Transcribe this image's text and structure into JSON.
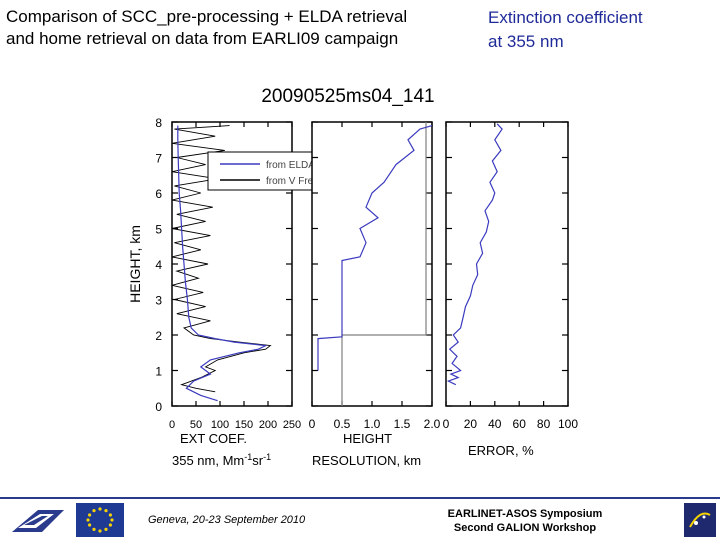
{
  "slide": {
    "title_left_line1": "Comparison of SCC_pre-processing + ELDA retrieval",
    "title_left_line2": "and home retrieval on data from EARLI09 campaign",
    "title_right_line1": "Extinction coefficient",
    "title_right_line2": "at 355 nm",
    "footer_city_date": "Geneva, 20-23 September 2010",
    "footer_event_line1": "EARLINET-ASOS Symposium",
    "footer_event_line2": "Second GALION Workshop"
  },
  "colors": {
    "elda": "#3b3bbf",
    "home": "#000000",
    "title_right": "#1f2a99",
    "footer_bar": "#2a3a8c"
  },
  "chart_data": [
    {
      "type": "line",
      "title": "20090525ms04_141",
      "xlabel_line1": "EXT COEF.",
      "xlabel_line2": "355 nm, Mm",
      "xlabel_sup": "-1",
      "xlabel_mid": "sr",
      "xlabel_sup2": "-1",
      "ylabel": "HEIGHT, km",
      "xlim": [
        0,
        250
      ],
      "ylim": [
        0,
        8
      ],
      "x_ticks": [
        0,
        50,
        100,
        150,
        200,
        250
      ],
      "y_ticks": [
        0,
        1,
        2,
        3,
        4,
        5,
        6,
        7,
        8
      ],
      "legend_position": "top-right",
      "series": [
        {
          "name": "from ELDA",
          "color": "#3b3bbf",
          "points": [
            [
              95,
              0.15
            ],
            [
              60,
              0.3
            ],
            [
              30,
              0.5
            ],
            [
              45,
              0.7
            ],
            [
              80,
              0.9
            ],
            [
              60,
              1.1
            ],
            [
              80,
              1.3
            ],
            [
              140,
              1.5
            ],
            [
              180,
              1.6
            ],
            [
              195,
              1.7
            ],
            [
              130,
              1.8
            ],
            [
              90,
              1.9
            ],
            [
              55,
              2.0
            ],
            [
              40,
              2.2
            ],
            [
              35,
              2.5
            ],
            [
              32,
              3.0
            ],
            [
              28,
              3.5
            ],
            [
              25,
              4.0
            ],
            [
              22,
              4.5
            ],
            [
              20,
              5.0
            ],
            [
              18,
              5.5
            ],
            [
              15,
              6.0
            ],
            [
              14,
              6.5
            ],
            [
              13,
              7.0
            ],
            [
              12,
              7.5
            ],
            [
              12,
              7.9
            ]
          ]
        },
        {
          "name": "from V Freudenthaler",
          "color": "#000000",
          "points": [
            [
              90,
              0.4
            ],
            [
              50,
              0.5
            ],
            [
              20,
              0.6
            ],
            [
              60,
              0.8
            ],
            [
              90,
              1.0
            ],
            [
              70,
              1.1
            ],
            [
              95,
              1.3
            ],
            [
              150,
              1.5
            ],
            [
              195,
              1.6
            ],
            [
              205,
              1.7
            ],
            [
              140,
              1.8
            ],
            [
              80,
              1.9
            ],
            [
              45,
              2.0
            ],
            [
              25,
              2.2
            ],
            [
              80,
              2.4
            ],
            [
              10,
              2.6
            ],
            [
              70,
              2.8
            ],
            [
              5,
              3.0
            ],
            [
              65,
              3.2
            ],
            [
              0,
              3.4
            ],
            [
              55,
              3.6
            ],
            [
              10,
              3.8
            ],
            [
              75,
              4.0
            ],
            [
              0,
              4.2
            ],
            [
              60,
              4.4
            ],
            [
              5,
              4.6
            ],
            [
              80,
              4.8
            ],
            [
              0,
              5.0
            ],
            [
              70,
              5.2
            ],
            [
              10,
              5.4
            ],
            [
              85,
              5.6
            ],
            [
              0,
              5.8
            ],
            [
              60,
              6.0
            ],
            [
              5,
              6.2
            ],
            [
              95,
              6.4
            ],
            [
              0,
              6.6
            ],
            [
              70,
              6.8
            ],
            [
              10,
              7.0
            ],
            [
              110,
              7.2
            ],
            [
              0,
              7.4
            ],
            [
              90,
              7.6
            ],
            [
              5,
              7.8
            ],
            [
              120,
              7.9
            ]
          ]
        }
      ]
    },
    {
      "type": "line",
      "xlabel_line1": "HEIGHT",
      "xlabel_line2": "RESOLUTION, km",
      "xlim": [
        0,
        2.0
      ],
      "ylim": [
        0,
        8
      ],
      "x_ticks": [
        "0",
        "0.5",
        "1.0",
        "1.5",
        "2.0"
      ],
      "x_tick_values": [
        0,
        0.5,
        1.0,
        1.5,
        2.0
      ],
      "series": [
        {
          "name": "from ELDA",
          "color": "#3b3bbf",
          "points": [
            [
              0.1,
              1.0
            ],
            [
              0.1,
              1.9
            ],
            [
              0.5,
              1.95
            ],
            [
              0.5,
              2.0
            ],
            [
              0.5,
              4.1
            ],
            [
              0.8,
              4.2
            ],
            [
              0.9,
              4.6
            ],
            [
              0.8,
              5.0
            ],
            [
              1.1,
              5.3
            ],
            [
              0.9,
              5.6
            ],
            [
              1.0,
              6.0
            ],
            [
              1.2,
              6.3
            ],
            [
              1.4,
              6.8
            ],
            [
              1.7,
              7.2
            ],
            [
              1.6,
              7.5
            ],
            [
              1.8,
              7.8
            ],
            [
              2.0,
              7.9
            ]
          ]
        },
        {
          "name": "from V Freudenthaler",
          "color": "#808080",
          "points": [
            [
              0.5,
              0
            ],
            [
              0.5,
              2.0
            ],
            [
              1.9,
              2.0
            ],
            [
              1.9,
              8.0
            ]
          ]
        }
      ]
    },
    {
      "type": "line",
      "xlabel_line1": "ERROR, %",
      "xlim": [
        0,
        100
      ],
      "ylim": [
        0,
        8
      ],
      "x_ticks": [
        0,
        20,
        40,
        60,
        80,
        100
      ],
      "series": [
        {
          "name": "from ELDA",
          "color": "#3b3bbf",
          "points": [
            [
              8,
              0.6
            ],
            [
              2,
              0.7
            ],
            [
              10,
              0.8
            ],
            [
              4,
              0.9
            ],
            [
              12,
              1.0
            ],
            [
              5,
              1.2
            ],
            [
              9,
              1.4
            ],
            [
              3,
              1.6
            ],
            [
              10,
              1.8
            ],
            [
              6,
              2.0
            ],
            [
              12,
              2.2
            ],
            [
              14,
              2.5
            ],
            [
              16,
              2.8
            ],
            [
              20,
              3.1
            ],
            [
              22,
              3.4
            ],
            [
              26,
              3.7
            ],
            [
              25,
              4.0
            ],
            [
              30,
              4.3
            ],
            [
              28,
              4.6
            ],
            [
              33,
              4.9
            ],
            [
              35,
              5.2
            ],
            [
              32,
              5.5
            ],
            [
              38,
              5.8
            ],
            [
              40,
              6.0
            ],
            [
              36,
              6.3
            ],
            [
              42,
              6.6
            ],
            [
              38,
              6.9
            ],
            [
              45,
              7.2
            ],
            [
              40,
              7.5
            ],
            [
              46,
              7.8
            ],
            [
              42,
              7.95
            ]
          ]
        }
      ]
    }
  ]
}
